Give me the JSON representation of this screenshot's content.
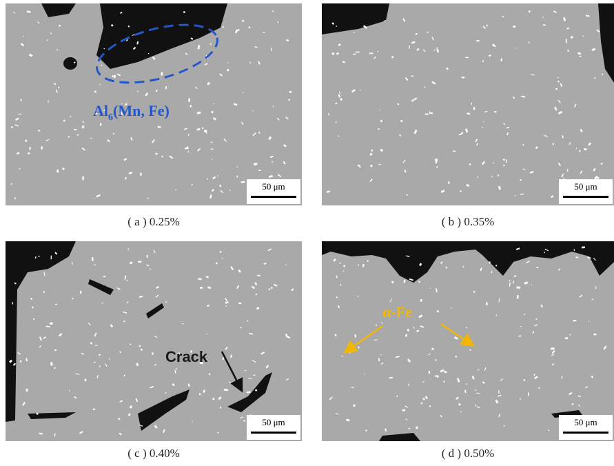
{
  "panels": [
    {
      "caption": "( a ) 0.25%",
      "scale_bar": "50 μm",
      "annotation": {
        "base": "Al",
        "subscript": "6",
        "rest": "(Mn, Fe)"
      }
    },
    {
      "caption": "( b ) 0.35%",
      "scale_bar": "50 μm"
    },
    {
      "caption": "( c ) 0.40%",
      "scale_bar": "50 μm",
      "annotation": {
        "text": "Crack"
      }
    },
    {
      "caption": "( d ) 0.50%",
      "scale_bar": "50 μm",
      "annotation": {
        "text": "α-Fe"
      }
    }
  ]
}
